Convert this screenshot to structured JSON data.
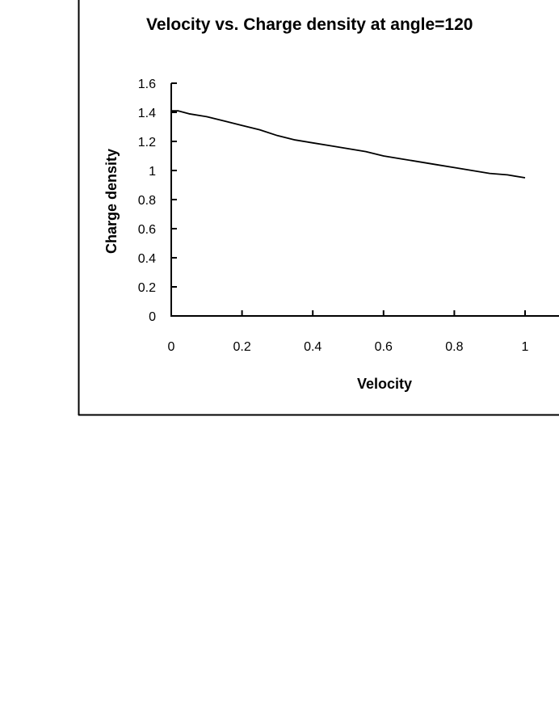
{
  "chart_data": {
    "type": "line",
    "title": "Velocity vs. Charge density at angle=120",
    "xlabel": "Velocity",
    "ylabel": "Charge density",
    "xlim": [
      0,
      1
    ],
    "ylim": [
      0,
      1.6
    ],
    "x_ticks": [
      "0",
      "0.2",
      "0.4",
      "0.6",
      "0.8",
      "1"
    ],
    "y_ticks": [
      "0",
      "0.2",
      "0.4",
      "0.6",
      "0.8",
      "1",
      "1.2",
      "1.4",
      "1.6"
    ],
    "grid": false,
    "legend": "none",
    "series": [
      {
        "x": [
          0,
          0.02,
          0.05,
          0.1,
          0.15,
          0.2,
          0.25,
          0.3,
          0.35,
          0.4,
          0.45,
          0.5,
          0.55,
          0.6,
          0.65,
          0.7,
          0.75,
          0.8,
          0.85,
          0.9,
          0.95,
          1.0
        ],
        "y": [
          1.41,
          1.41,
          1.39,
          1.37,
          1.34,
          1.31,
          1.28,
          1.24,
          1.21,
          1.19,
          1.17,
          1.15,
          1.13,
          1.1,
          1.08,
          1.06,
          1.04,
          1.02,
          1.0,
          0.98,
          0.97,
          0.95
        ],
        "color": "#000000"
      }
    ]
  }
}
